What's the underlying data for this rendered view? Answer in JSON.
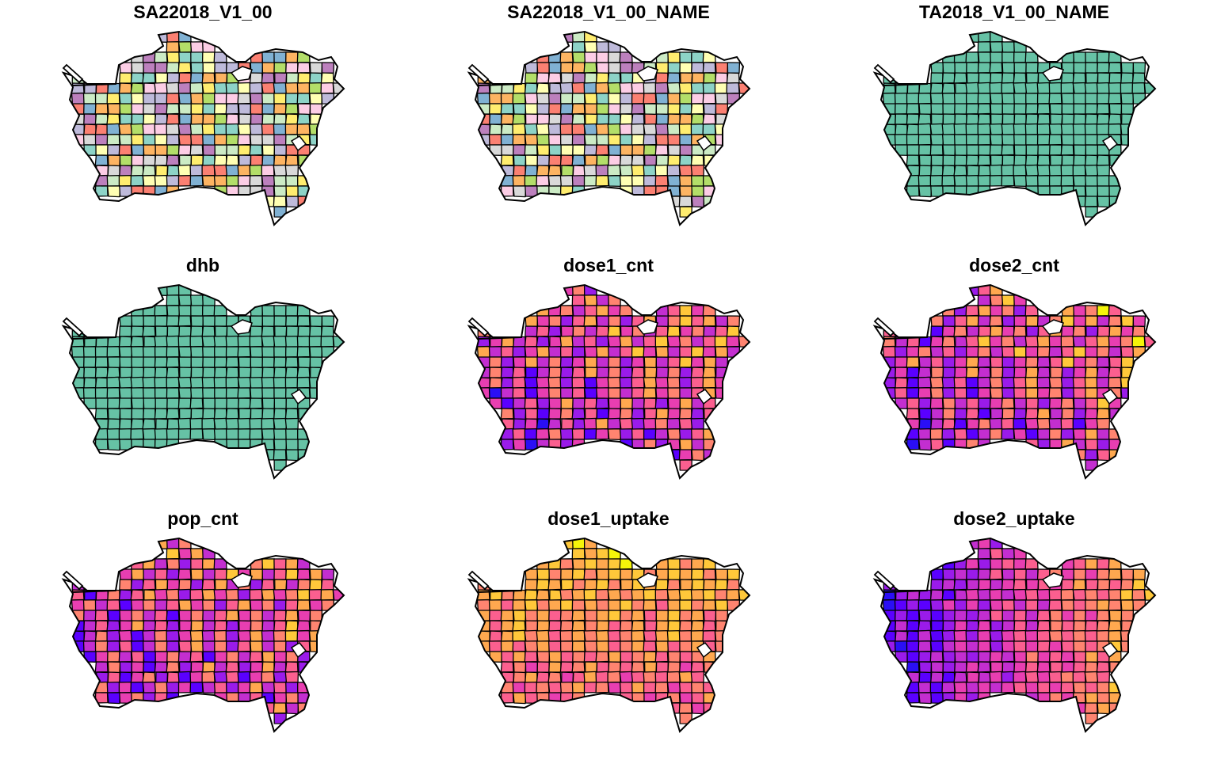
{
  "panels": [
    {
      "title": "SA22018_V1_00",
      "palette": "qualitative"
    },
    {
      "title": "SA22018_V1_00_NAME",
      "palette": "qualitative"
    },
    {
      "title": "TA2018_V1_00_NAME",
      "palette": "single"
    },
    {
      "title": "dhb",
      "palette": "single"
    },
    {
      "title": "dose1_cnt",
      "palette": "sequential"
    },
    {
      "title": "dose2_cnt",
      "palette": "sequential"
    },
    {
      "title": "pop_cnt",
      "palette": "sequential"
    },
    {
      "title": "dose1_uptake",
      "palette": "sequential"
    },
    {
      "title": "dose2_uptake",
      "palette": "sequential"
    }
  ],
  "colors": {
    "qualitative": [
      "#8DD3C7",
      "#FFFFB3",
      "#BEBADA",
      "#FB8072",
      "#80B1D3",
      "#FDB462",
      "#B3DE69",
      "#FCCDE5",
      "#D9D9D9",
      "#BC80BD",
      "#CCEBC5",
      "#FFED6F"
    ],
    "single": "#66C2A5",
    "sequential": [
      "#0D0887",
      "#2A0FF5",
      "#5A00FF",
      "#9A1BEA",
      "#C32ED0",
      "#E83EB1",
      "#FB5F8F",
      "#FF8470",
      "#FFA84F",
      "#FFC83A",
      "#F5F50A"
    ]
  }
}
